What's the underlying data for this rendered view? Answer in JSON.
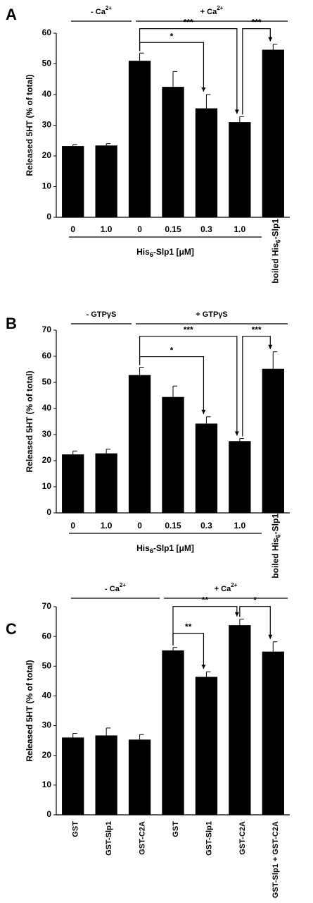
{
  "chart_data": [
    {
      "panel_label": "A",
      "type": "bar",
      "ylabel": "Released 5HT (% of total)",
      "ylim": [
        0,
        60
      ],
      "yticks": [
        "0",
        "10",
        "20",
        "30",
        "40",
        "50",
        "60"
      ],
      "categories": [
        "0",
        "1.0",
        "0",
        "0.15",
        "0.3",
        "1.0",
        "boiled His6-Slp1"
      ],
      "values": [
        23.2,
        23.4,
        51.0,
        42.5,
        35.5,
        31.0,
        54.6
      ],
      "errors": [
        0.5,
        0.6,
        2.5,
        5.0,
        4.5,
        1.8,
        1.8
      ],
      "groups": [
        {
          "label": "- Ca2+",
          "prefix": "- Ca",
          "sup": "2+"
        },
        {
          "label": "+ Ca2+",
          "prefix": "+ Ca",
          "sup": "2+"
        }
      ],
      "xlabel": {
        "pre": "His",
        "sub": "6",
        "post": "-Slp1 [μM]"
      },
      "rotated_label": {
        "pre": "boiled His",
        "sub": "6",
        "post": "-Slp1"
      },
      "significance": [
        {
          "from": 2,
          "to": 4,
          "label": "*"
        },
        {
          "from": 2,
          "to": 5,
          "label": "***"
        },
        {
          "from": 5,
          "to": 6,
          "label": "***"
        }
      ]
    },
    {
      "panel_label": "B",
      "type": "bar",
      "ylabel": "Released 5HT (% of total)",
      "ylim": [
        0,
        70
      ],
      "yticks": [
        "0",
        "10",
        "20",
        "30",
        "40",
        "50",
        "60",
        "70"
      ],
      "categories": [
        "0",
        "1.0",
        "0",
        "0.15",
        "0.3",
        "1.0",
        "boiled His6-Slp1"
      ],
      "values": [
        22.4,
        22.8,
        52.8,
        44.4,
        34.2,
        27.5,
        55.2
      ],
      "errors": [
        1.3,
        1.6,
        3.0,
        4.2,
        2.6,
        1.0,
        6.5
      ],
      "groups": [
        {
          "label": "- GTPγS",
          "prefix": "- GTPγS",
          "sup": ""
        },
        {
          "label": "+ GTPγS",
          "prefix": "+ GTPγS",
          "sup": ""
        }
      ],
      "xlabel": {
        "pre": "His",
        "sub": "6",
        "post": "-Slp1 [μM]"
      },
      "rotated_label": {
        "pre": "boiled His",
        "sub": "6",
        "post": "-Slp1"
      },
      "significance": [
        {
          "from": 2,
          "to": 4,
          "label": "*"
        },
        {
          "from": 2,
          "to": 5,
          "label": "***"
        },
        {
          "from": 5,
          "to": 6,
          "label": "***"
        }
      ]
    },
    {
      "panel_label": "C",
      "type": "bar",
      "ylabel": "Released 5HT (% of total)",
      "ylim": [
        0,
        70
      ],
      "yticks": [
        "0",
        "10",
        "20",
        "30",
        "40",
        "50",
        "60",
        "70"
      ],
      "categories": [
        "GST",
        "GST-Slp1",
        "GST-C2A",
        "GST",
        "GST-Slp1",
        "GST-C2A",
        "GST-Slp1 + GST-C2A"
      ],
      "values": [
        26.0,
        26.7,
        25.3,
        55.3,
        46.4,
        63.8,
        54.9
      ],
      "errors": [
        1.4,
        2.5,
        1.7,
        1.0,
        1.7,
        2.0,
        3.3
      ],
      "groups": [
        {
          "label": "- Ca2+",
          "prefix": "- Ca",
          "sup": "2+"
        },
        {
          "label": "+ Ca2+",
          "prefix": "+ Ca",
          "sup": "2+"
        }
      ],
      "significance": [
        {
          "from": 3,
          "to": 4,
          "label": "**"
        },
        {
          "from": 3,
          "to": 5,
          "label": "**"
        },
        {
          "from": 5,
          "to": 6,
          "label": "*"
        }
      ]
    }
  ]
}
